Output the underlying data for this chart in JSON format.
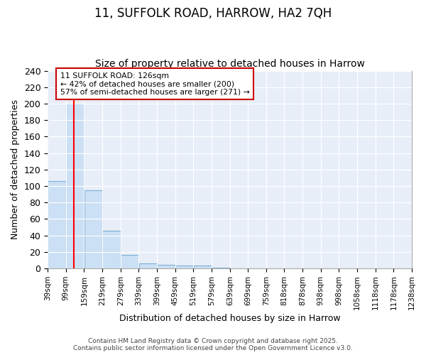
{
  "title_line1": "11, SUFFOLK ROAD, HARROW, HA2 7QH",
  "title_line2": "Size of property relative to detached houses in Harrow",
  "xlabel": "Distribution of detached houses by size in Harrow",
  "ylabel": "Number of detached properties",
  "bar_values": [
    106,
    200,
    95,
    46,
    16,
    6,
    4,
    3,
    3,
    1,
    0,
    0,
    0,
    0,
    0,
    0,
    0,
    0,
    0,
    0
  ],
  "bin_edges": [
    39,
    99,
    159,
    219,
    279,
    339,
    399,
    459,
    519,
    579,
    639,
    699,
    759,
    818,
    878,
    938,
    998,
    1058,
    1118,
    1178,
    1238
  ],
  "bin_labels": [
    "39sqm",
    "99sqm",
    "159sqm",
    "219sqm",
    "279sqm",
    "339sqm",
    "399sqm",
    "459sqm",
    "519sqm",
    "579sqm",
    "639sqm",
    "699sqm",
    "759sqm",
    "818sqm",
    "878sqm",
    "938sqm",
    "998sqm",
    "1058sqm",
    "1118sqm",
    "1178sqm",
    "1238sqm"
  ],
  "bar_color": "#cce0f5",
  "bar_edge_color": "#7bafd4",
  "red_line_x": 126,
  "ylim": [
    0,
    240
  ],
  "yticks": [
    0,
    20,
    40,
    60,
    80,
    100,
    120,
    140,
    160,
    180,
    200,
    220,
    240
  ],
  "annotation_text": "11 SUFFOLK ROAD: 126sqm\n← 42% of detached houses are smaller (200)\n57% of semi-detached houses are larger (271) →",
  "annotation_box_color": "#ffffff",
  "annotation_box_edge": "#cc0000",
  "footer_line1": "Contains HM Land Registry data © Crown copyright and database right 2025.",
  "footer_line2": "Contains public sector information licensed under the Open Government Licence v3.0.",
  "fig_background": "#ffffff",
  "plot_background": "#e8eef8",
  "grid_color": "#ffffff",
  "title_fontsize": 12,
  "subtitle_fontsize": 10
}
